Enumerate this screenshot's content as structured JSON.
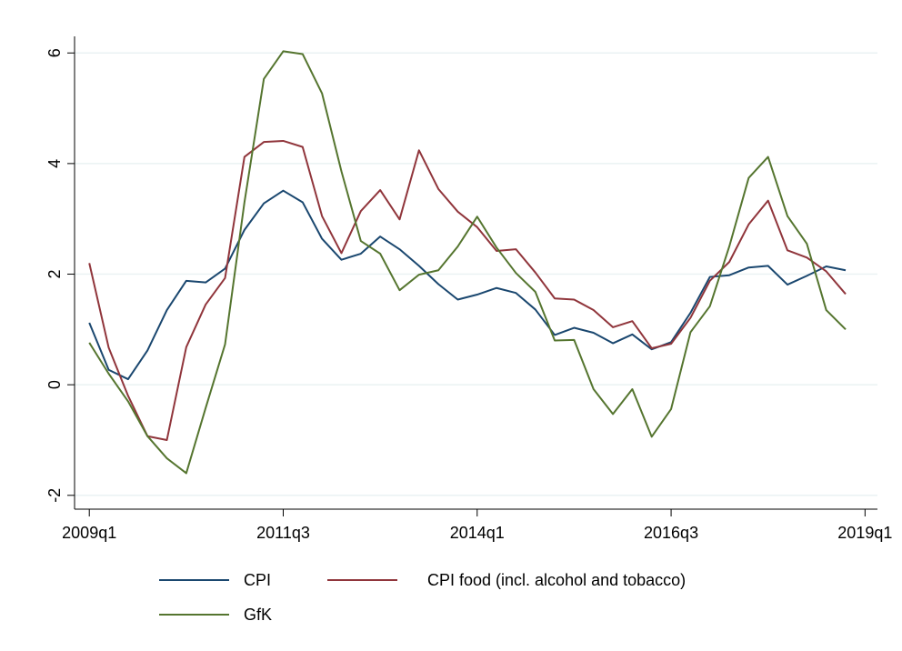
{
  "chart_data": {
    "type": "line",
    "x": [
      2009,
      2009.25,
      2009.5,
      2009.75,
      2010,
      2010.25,
      2010.5,
      2010.75,
      2011,
      2011.25,
      2011.5,
      2011.75,
      2012,
      2012.25,
      2012.5,
      2012.75,
      2013,
      2013.25,
      2013.5,
      2013.75,
      2014,
      2014.25,
      2014.5,
      2014.75,
      2015,
      2015.25,
      2015.5,
      2015.75,
      2016,
      2016.25,
      2016.5,
      2016.75,
      2017,
      2017.25,
      2017.5,
      2017.75,
      2018,
      2018.25,
      2018.5,
      2018.75
    ],
    "series": [
      {
        "name": "CPI",
        "color": "#1a476f",
        "values": [
          1.12,
          0.27,
          0.1,
          0.62,
          1.35,
          1.88,
          1.85,
          2.1,
          2.8,
          3.28,
          3.51,
          3.3,
          2.64,
          2.26,
          2.37,
          2.68,
          2.45,
          2.15,
          1.82,
          1.54,
          1.63,
          1.75,
          1.66,
          1.36,
          0.9,
          1.03,
          0.94,
          0.75,
          0.91,
          0.64,
          0.77,
          1.3,
          1.95,
          1.98,
          2.12,
          2.15,
          1.81,
          1.97,
          2.14,
          2.07
        ]
      },
      {
        "name": "CPI food (incl. alcohol and tobacco)",
        "color": "#90353b",
        "values": [
          2.2,
          0.67,
          -0.2,
          -0.93,
          -1.0,
          0.68,
          1.45,
          1.93,
          4.12,
          4.39,
          4.41,
          4.3,
          3.05,
          2.38,
          3.14,
          3.52,
          2.99,
          4.24,
          3.54,
          3.13,
          2.85,
          2.42,
          2.45,
          2.03,
          1.56,
          1.54,
          1.35,
          1.04,
          1.15,
          0.66,
          0.74,
          1.21,
          1.88,
          2.22,
          2.9,
          3.33,
          2.43,
          2.3,
          2.05,
          1.64
        ]
      },
      {
        "name": "GfK",
        "color": "#55752f",
        "values": [
          0.76,
          0.2,
          -0.3,
          -0.93,
          -1.33,
          -1.6,
          -0.42,
          0.73,
          3.3,
          5.53,
          6.03,
          5.98,
          5.27,
          3.86,
          2.6,
          2.37,
          1.71,
          1.99,
          2.07,
          2.5,
          3.04,
          2.48,
          2.02,
          1.68,
          0.8,
          0.81,
          -0.08,
          -0.53,
          -0.08,
          -0.94,
          -0.44,
          0.95,
          1.42,
          2.5,
          3.74,
          4.12,
          3.05,
          2.55,
          1.35,
          1.0
        ]
      }
    ],
    "xlim": [
      2008.81,
      2019.16
    ],
    "xticks": [
      {
        "value": 2009,
        "label": "2009q1"
      },
      {
        "value": 2011.5,
        "label": "2011q3"
      },
      {
        "value": 2014,
        "label": "2014q1"
      },
      {
        "value": 2016.5,
        "label": "2016q3"
      },
      {
        "value": 2019,
        "label": "2019q1"
      }
    ],
    "ylim": [
      -2.25,
      6.3
    ],
    "yticks": [
      -2,
      0,
      2,
      4,
      6
    ],
    "grid": true,
    "legend": "bottom"
  }
}
